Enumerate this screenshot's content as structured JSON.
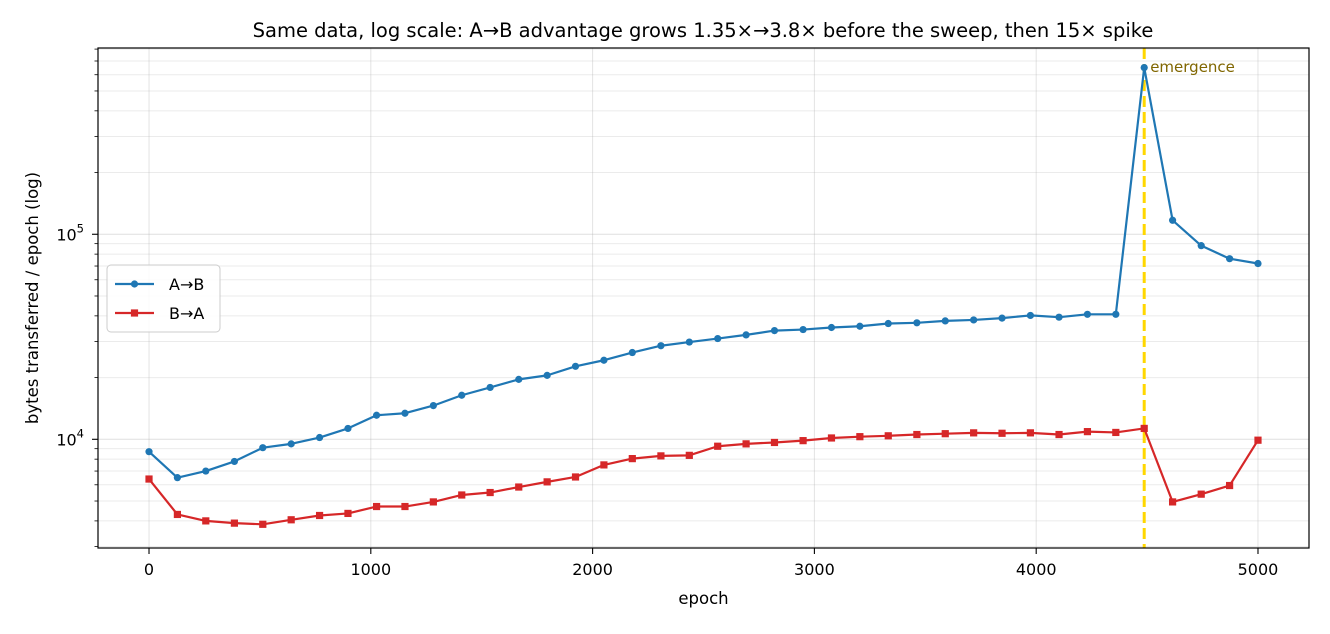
{
  "chart_data": {
    "type": "line",
    "title": "Same data, log scale: A→B advantage grows 1.35×→3.8× before the sweep, then 15× spike",
    "xlabel": "epoch",
    "ylabel": "bytes transferred / epoch (log)",
    "xscale": "linear",
    "yscale": "log",
    "xlim": [
      -230,
      5230
    ],
    "ylim": [
      2950,
      810000
    ],
    "x_ticks": [
      0,
      1000,
      2000,
      3000,
      4000,
      5000
    ],
    "x_tick_labels": [
      "0",
      "1000",
      "2000",
      "3000",
      "4000",
      "5000"
    ],
    "y_major_ticks": [
      10000,
      100000
    ],
    "y_tick_labels": [
      {
        "base": "10",
        "exp": "4"
      },
      {
        "base": "10",
        "exp": "5"
      }
    ],
    "grid": true,
    "legend_position": "center-left",
    "x": [
      0,
      128,
      256,
      385,
      513,
      641,
      769,
      897,
      1026,
      1154,
      1282,
      1410,
      1538,
      1667,
      1795,
      1923,
      2051,
      2179,
      2308,
      2436,
      2564,
      2692,
      2820,
      2949,
      3077,
      3205,
      3333,
      3462,
      3590,
      3718,
      3846,
      3974,
      4103,
      4231,
      4359,
      4487,
      4615,
      4744,
      4872,
      5000
    ],
    "series": [
      {
        "name": "A→B",
        "color": "#1f77b4",
        "marker": "circle",
        "values": [
          8700,
          6500,
          7000,
          7800,
          9100,
          9500,
          10200,
          11300,
          13100,
          13400,
          14600,
          16400,
          17900,
          19600,
          20500,
          22700,
          24300,
          26500,
          28600,
          29800,
          31000,
          32300,
          33900,
          34300,
          35100,
          35600,
          36700,
          37000,
          37800,
          38200,
          39000,
          40200,
          39400,
          40700,
          40700,
          650000,
          117000,
          88000,
          76000,
          72000
        ]
      },
      {
        "name": "B→A",
        "color": "#d62728",
        "marker": "square",
        "values": [
          6400,
          4300,
          4000,
          3900,
          3850,
          4050,
          4250,
          4350,
          4700,
          4700,
          4950,
          5350,
          5500,
          5850,
          6200,
          6550,
          7500,
          8050,
          8300,
          8350,
          9250,
          9500,
          9650,
          9850,
          10150,
          10300,
          10400,
          10550,
          10650,
          10750,
          10700,
          10750,
          10550,
          10900,
          10800,
          11300,
          4950,
          5400,
          5950,
          9900
        ]
      }
    ],
    "annotations": [
      {
        "type": "vline",
        "x": 4487,
        "color": "#ffd700",
        "style": "dashed",
        "label": "emergence",
        "label_color": "#806600"
      }
    ]
  }
}
